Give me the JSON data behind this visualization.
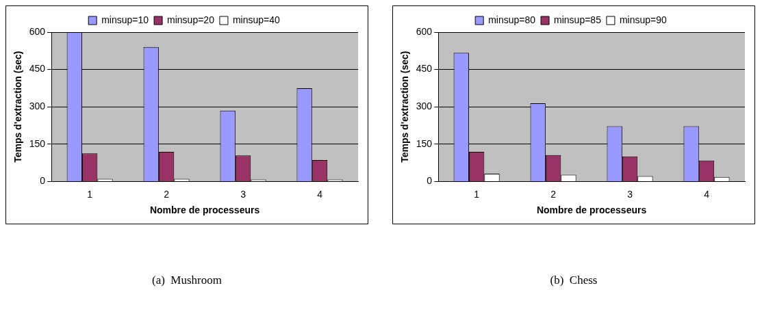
{
  "chart_data": [
    {
      "type": "bar",
      "categories": [
        "1",
        "2",
        "3",
        "4"
      ],
      "xlabel": "Nombre de processeurs",
      "ylabel": "Temps d'extraction (sec)",
      "ylim": [
        0,
        600
      ],
      "yticks": [
        0,
        150,
        300,
        450,
        600
      ],
      "grid": "y",
      "legend": "top",
      "annotations": [
        "(a)  Mushroom"
      ],
      "series": [
        {
          "name": "minsup=10",
          "color": "#9999ff",
          "values": [
            600,
            540,
            285,
            375
          ]
        },
        {
          "name": "minsup=20",
          "color": "#993366",
          "values": [
            113,
            119,
            105,
            86
          ]
        },
        {
          "name": "minsup=40",
          "color": "#ffffff",
          "values": [
            11,
            11,
            8,
            8
          ]
        }
      ]
    },
    {
      "type": "bar",
      "categories": [
        "1",
        "2",
        "3",
        "4"
      ],
      "xlabel": "Nombre de processeurs",
      "ylabel": "Temps d'extraction (sec)",
      "ylim": [
        0,
        600
      ],
      "yticks": [
        0,
        150,
        300,
        450,
        600
      ],
      "grid": "y",
      "legend": "top",
      "annotations": [
        "(b)  Chess"
      ],
      "series": [
        {
          "name": "minsup=80",
          "color": "#9999ff",
          "values": [
            517,
            314,
            222,
            222
          ]
        },
        {
          "name": "minsup=85",
          "color": "#993366",
          "values": [
            119,
            106,
            101,
            84
          ]
        },
        {
          "name": "minsup=90",
          "color": "#ffffff",
          "values": [
            31,
            27,
            22,
            18
          ]
        }
      ]
    }
  ]
}
